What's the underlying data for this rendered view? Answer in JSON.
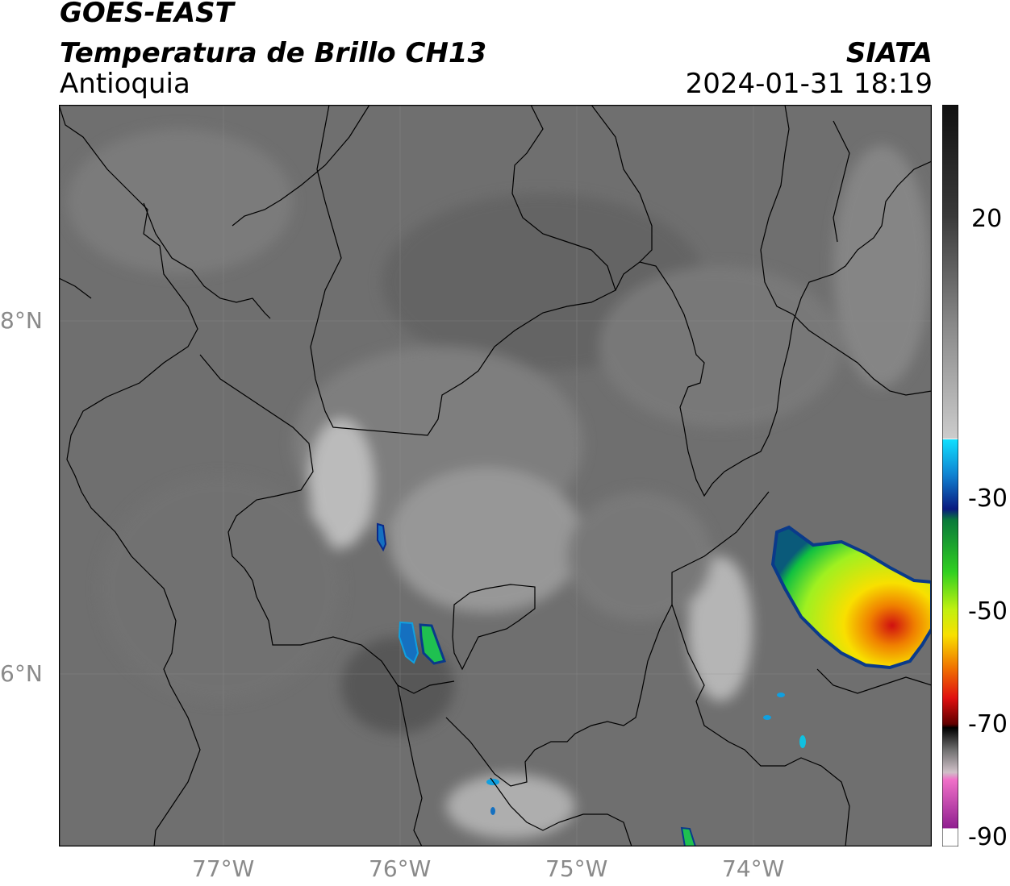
{
  "header": {
    "satellite": "GOES-EAST",
    "product": "Temperatura de Brillo CH13",
    "org": "SIATA",
    "region": "Antioquia",
    "datetime": "2024-01-31 18:19"
  },
  "map": {
    "lat_ticks": [
      "8°N",
      "6°N"
    ],
    "lon_ticks": [
      "77°W",
      "76°W",
      "75°W",
      "74°W"
    ]
  },
  "colorbar": {
    "ticks": [
      "20",
      "-30",
      "-50",
      "-70",
      "-90"
    ],
    "gradient_colors": {
      "warm": "#1c1c1c",
      "mid": "#9a9a9a",
      "cold_white": "#ffffff",
      "cyan": "#10e0ff",
      "blue": "#0a2a8a",
      "green": "#10c040",
      "lime": "#a0f020",
      "yellow": "#f8e000",
      "orange": "#f08000",
      "red": "#d01010",
      "dark_red": "#500000",
      "black": "#000000",
      "pink": "#e060c0",
      "purple": "#a020a0"
    }
  }
}
